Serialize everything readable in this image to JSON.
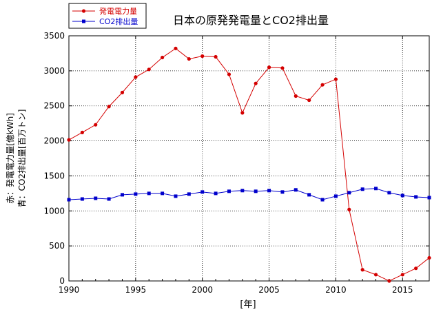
{
  "chart_data": {
    "type": "line",
    "title": "日本の原発発電量とCO2排出量",
    "xlabel": "[年]",
    "ylabel_lines": [
      "赤：発電電力量[億kWh]",
      "青：CO2排出量[百万トン]"
    ],
    "xlim": [
      1990,
      2017
    ],
    "ylim": [
      0,
      3500
    ],
    "x_ticks": [
      1990,
      1995,
      2000,
      2005,
      2010,
      2015
    ],
    "y_ticks": [
      0,
      500,
      1000,
      1500,
      2000,
      2500,
      3000,
      3500
    ],
    "grid": true,
    "legend_position": "top-left",
    "x": [
      1990,
      1991,
      1992,
      1993,
      1994,
      1995,
      1996,
      1997,
      1998,
      1999,
      2000,
      2001,
      2002,
      2003,
      2004,
      2005,
      2006,
      2007,
      2008,
      2009,
      2010,
      2011,
      2012,
      2013,
      2014,
      2015,
      2016,
      2017
    ],
    "series": [
      {
        "name": "発電電力量",
        "color": "#d40000",
        "marker": "circle",
        "values": [
          2014,
          2120,
          2230,
          2490,
          2690,
          2910,
          3020,
          3190,
          3320,
          3170,
          3210,
          3200,
          2950,
          2400,
          2820,
          3050,
          3040,
          2640,
          2580,
          2800,
          2880,
          1020,
          160,
          90,
          0,
          90,
          180,
          330
        ]
      },
      {
        "name": "CO2排出量",
        "color": "#0000cc",
        "marker": "square",
        "values": [
          1160,
          1170,
          1180,
          1170,
          1230,
          1240,
          1250,
          1250,
          1210,
          1240,
          1270,
          1250,
          1280,
          1290,
          1280,
          1290,
          1270,
          1300,
          1230,
          1160,
          1210,
          1260,
          1310,
          1320,
          1260,
          1220,
          1200,
          1190
        ]
      }
    ]
  }
}
